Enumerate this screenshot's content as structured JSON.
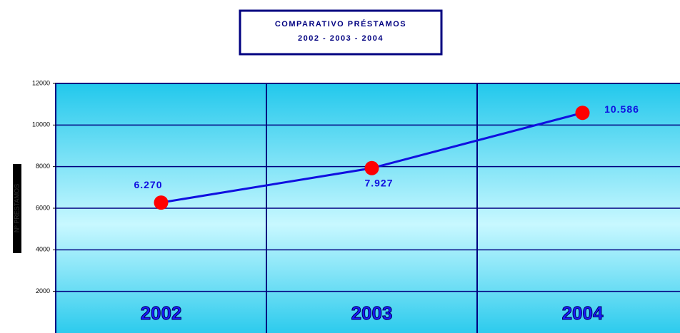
{
  "chart_data": {
    "type": "line",
    "title": [
      "COMPARATIVO PRÉSTAMOS",
      "2002 - 2003 - 2004"
    ],
    "y_label": "Nº PRÉSTAMOS",
    "categories": [
      "2002",
      "2003",
      "2004"
    ],
    "series": [
      {
        "name": "Nº PRÉSTAMOS",
        "color": "#1010e0",
        "marker_color": "#ff0000",
        "values": [
          6270,
          7927,
          10586
        ],
        "value_labels": [
          "6.270",
          "7.927",
          "10.586"
        ]
      }
    ],
    "ylim": [
      0,
      12000
    ],
    "yticks": [
      2000,
      4000,
      6000,
      8000,
      10000,
      12000
    ],
    "grid": true
  }
}
